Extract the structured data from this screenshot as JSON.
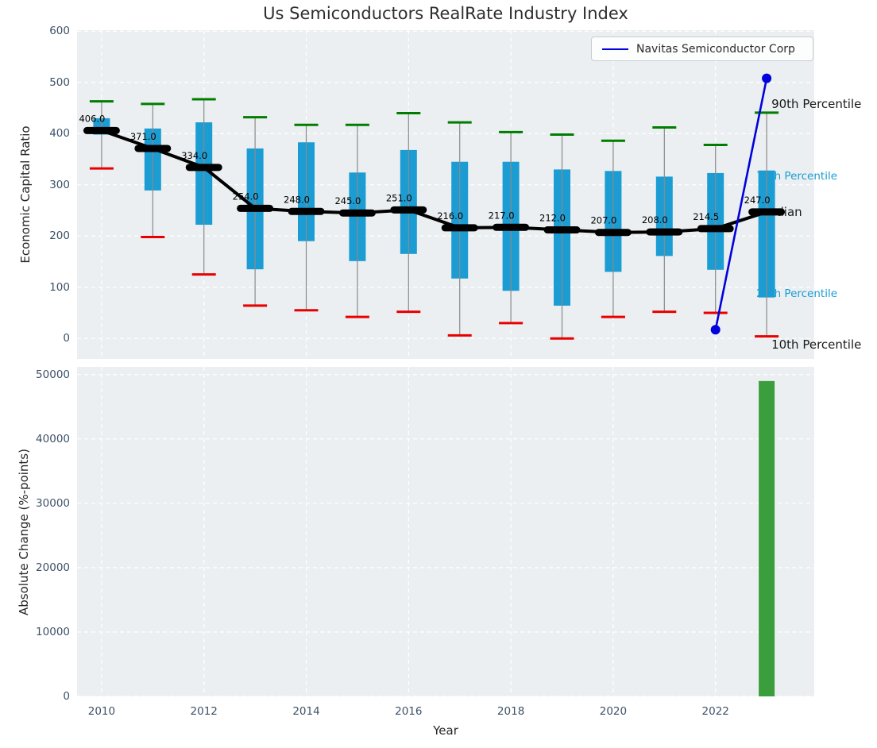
{
  "title": "Us Semiconductors RealRate Industry Index",
  "chart_data": [
    {
      "type": "boxplot+line",
      "title": "Us Semiconductors RealRate Industry Index",
      "ylabel": "Economic Capital Ratio",
      "xlabel": "",
      "ylim": [
        -40,
        602
      ],
      "xlim": [
        2009.52,
        2023.93
      ],
      "yticks": [
        0,
        100,
        200,
        300,
        400,
        500,
        600
      ],
      "xticks": [
        2010,
        2012,
        2014,
        2016,
        2018,
        2020,
        2022
      ],
      "grid": true,
      "legend_position": "upper right",
      "years": [
        2010,
        2011,
        2012,
        2013,
        2014,
        2015,
        2016,
        2017,
        2018,
        2019,
        2020,
        2021,
        2022,
        2023
      ],
      "median": [
        406,
        371,
        334,
        254,
        248,
        245,
        251,
        216,
        217,
        212,
        207,
        208,
        214.5,
        247
      ],
      "median_labels": [
        "406.0",
        "371.0",
        "334.0",
        "254.0",
        "248.0",
        "245.0",
        "251.0",
        "216.0",
        "217.0",
        "212.0",
        "207.0",
        "208.0",
        "214.5",
        "247.0"
      ],
      "q3": [
        430,
        410,
        422,
        371,
        383,
        324,
        368,
        345,
        345,
        330,
        327,
        316,
        323,
        328
      ],
      "q1": [
        398,
        289,
        222,
        135,
        190,
        151,
        165,
        117,
        93,
        64,
        130,
        161,
        134,
        80
      ],
      "p90": [
        463,
        458,
        467,
        432,
        417,
        417,
        440,
        422,
        403,
        398,
        386,
        412,
        378,
        441
      ],
      "p10": [
        332,
        198,
        125,
        64,
        55,
        42,
        52,
        6,
        30,
        0,
        42,
        52,
        50,
        4
      ],
      "series": [
        {
          "name": "Navitas Semiconductor Corp",
          "color": "#0101dd",
          "x": [
            2022,
            2023
          ],
          "y": [
            17,
            508
          ]
        }
      ],
      "annotations": [
        {
          "text": "90th Percentile",
          "value": 441,
          "color": "#1a1a1a",
          "size": 15
        },
        {
          "text": "75th Percentile",
          "value": 328,
          "color": "#1b9cd3",
          "size": 13.5
        },
        {
          "text": "Median",
          "value": 247,
          "color": "#1a1a1a",
          "size": 15
        },
        {
          "text": "25th Percentile",
          "value": 78,
          "color": "#1b9cd3",
          "size": 13.5
        },
        {
          "text": "10th Percentile",
          "value": 4,
          "color": "#1a1a1a",
          "size": 15
        }
      ],
      "colors": {
        "box": "#1b9cd3",
        "whisker": "#8a8a8a",
        "cap_top": "#007d00",
        "cap_bottom": "#e80000",
        "median": "#000000",
        "plot_bg": "#ebeff1",
        "grid": "#ffffff"
      }
    },
    {
      "type": "bar",
      "ylabel": "Absolute Change (%-points)",
      "xlabel": "Year",
      "ylim": [
        0,
        51200
      ],
      "yticks": [
        0,
        10000,
        20000,
        30000,
        40000,
        50000
      ],
      "x": [
        2023
      ],
      "values": [
        49000
      ],
      "bar_color": "#3b9e3d",
      "grid": true
    }
  ]
}
